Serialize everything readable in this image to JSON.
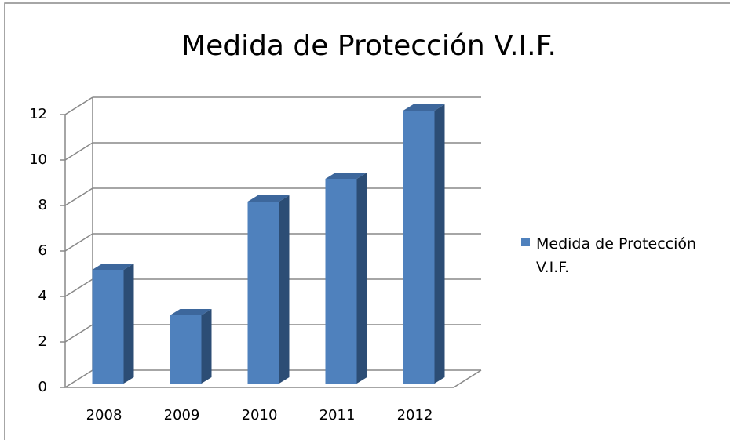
{
  "chart_data": {
    "type": "bar",
    "title": "Medida de Protección V.I.F.",
    "categories": [
      "2008",
      "2009",
      "2010",
      "2011",
      "2012"
    ],
    "series": [
      {
        "name": "Medida de Protección V.I.F.",
        "color": "#4f81bd",
        "values": [
          5,
          3,
          8,
          9,
          12
        ]
      }
    ],
    "ylim": [
      0,
      12
    ],
    "yticks": [
      0,
      2,
      4,
      6,
      8,
      10,
      12
    ],
    "grid": true,
    "legend": "right"
  }
}
